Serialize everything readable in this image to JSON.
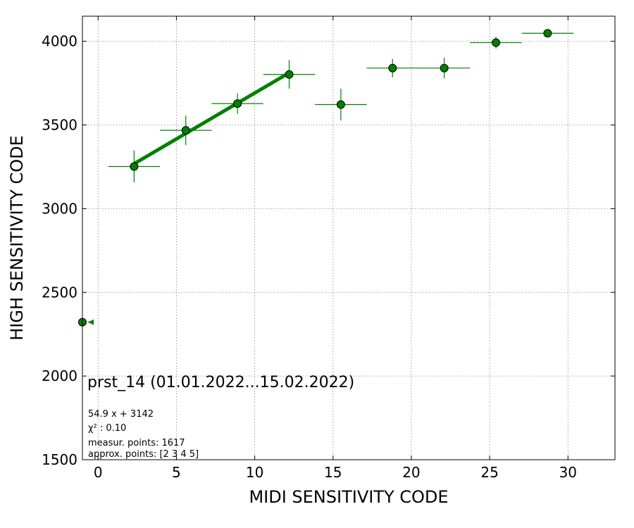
{
  "chart_data": {
    "type": "scatter",
    "title": "prst_14 (01.01.2022...15.02.2022)",
    "xlabel": "MIDI SENSITIVITY CODE",
    "ylabel": "HIGH SENSITIVITY CODE",
    "xlim": [
      -1,
      33
    ],
    "ylim": [
      1500,
      4150
    ],
    "x_ticks": [
      0,
      5,
      10,
      15,
      20,
      25,
      30
    ],
    "y_ticks": [
      1500,
      2000,
      2500,
      3000,
      3500,
      4000
    ],
    "grid": true,
    "colors": {
      "marker": "#008000",
      "edge": "#000000",
      "fit": "#008000",
      "grid": "#888888"
    },
    "points": [
      {
        "x": 2.3,
        "y": 3252,
        "xerr": 1.65,
        "yerr": 95
      },
      {
        "x": 5.6,
        "y": 3468,
        "xerr": 1.65,
        "yerr": 88
      },
      {
        "x": 8.9,
        "y": 3628,
        "xerr": 1.65,
        "yerr": 62
      },
      {
        "x": 12.2,
        "y": 3802,
        "xerr": 1.65,
        "yerr": 85
      },
      {
        "x": 15.5,
        "y": 3622,
        "xerr": 1.65,
        "yerr": 95
      },
      {
        "x": 18.8,
        "y": 3840,
        "xerr": 1.65,
        "yerr": 55
      },
      {
        "x": 22.1,
        "y": 3840,
        "xerr": 1.65,
        "yerr": 62
      },
      {
        "x": 25.4,
        "y": 3992,
        "xerr": 1.65,
        "yerr": 35
      },
      {
        "x": 28.7,
        "y": 4048,
        "xerr": 1.65,
        "yerr": 15
      }
    ],
    "offscale_point": {
      "x": -1,
      "y": 2322,
      "arrow_to_x": -0.3,
      "direction": "left"
    },
    "fit": {
      "slope": 54.9,
      "intercept": 3142,
      "x_range": [
        2.3,
        12.2
      ]
    },
    "annotations": {
      "equation": "54.9 x + 3142",
      "chi2": "χ² : 0.10",
      "measur_points": "measur. points: 1617",
      "approx_points": "approx. points: [2 3 4 5]"
    }
  }
}
